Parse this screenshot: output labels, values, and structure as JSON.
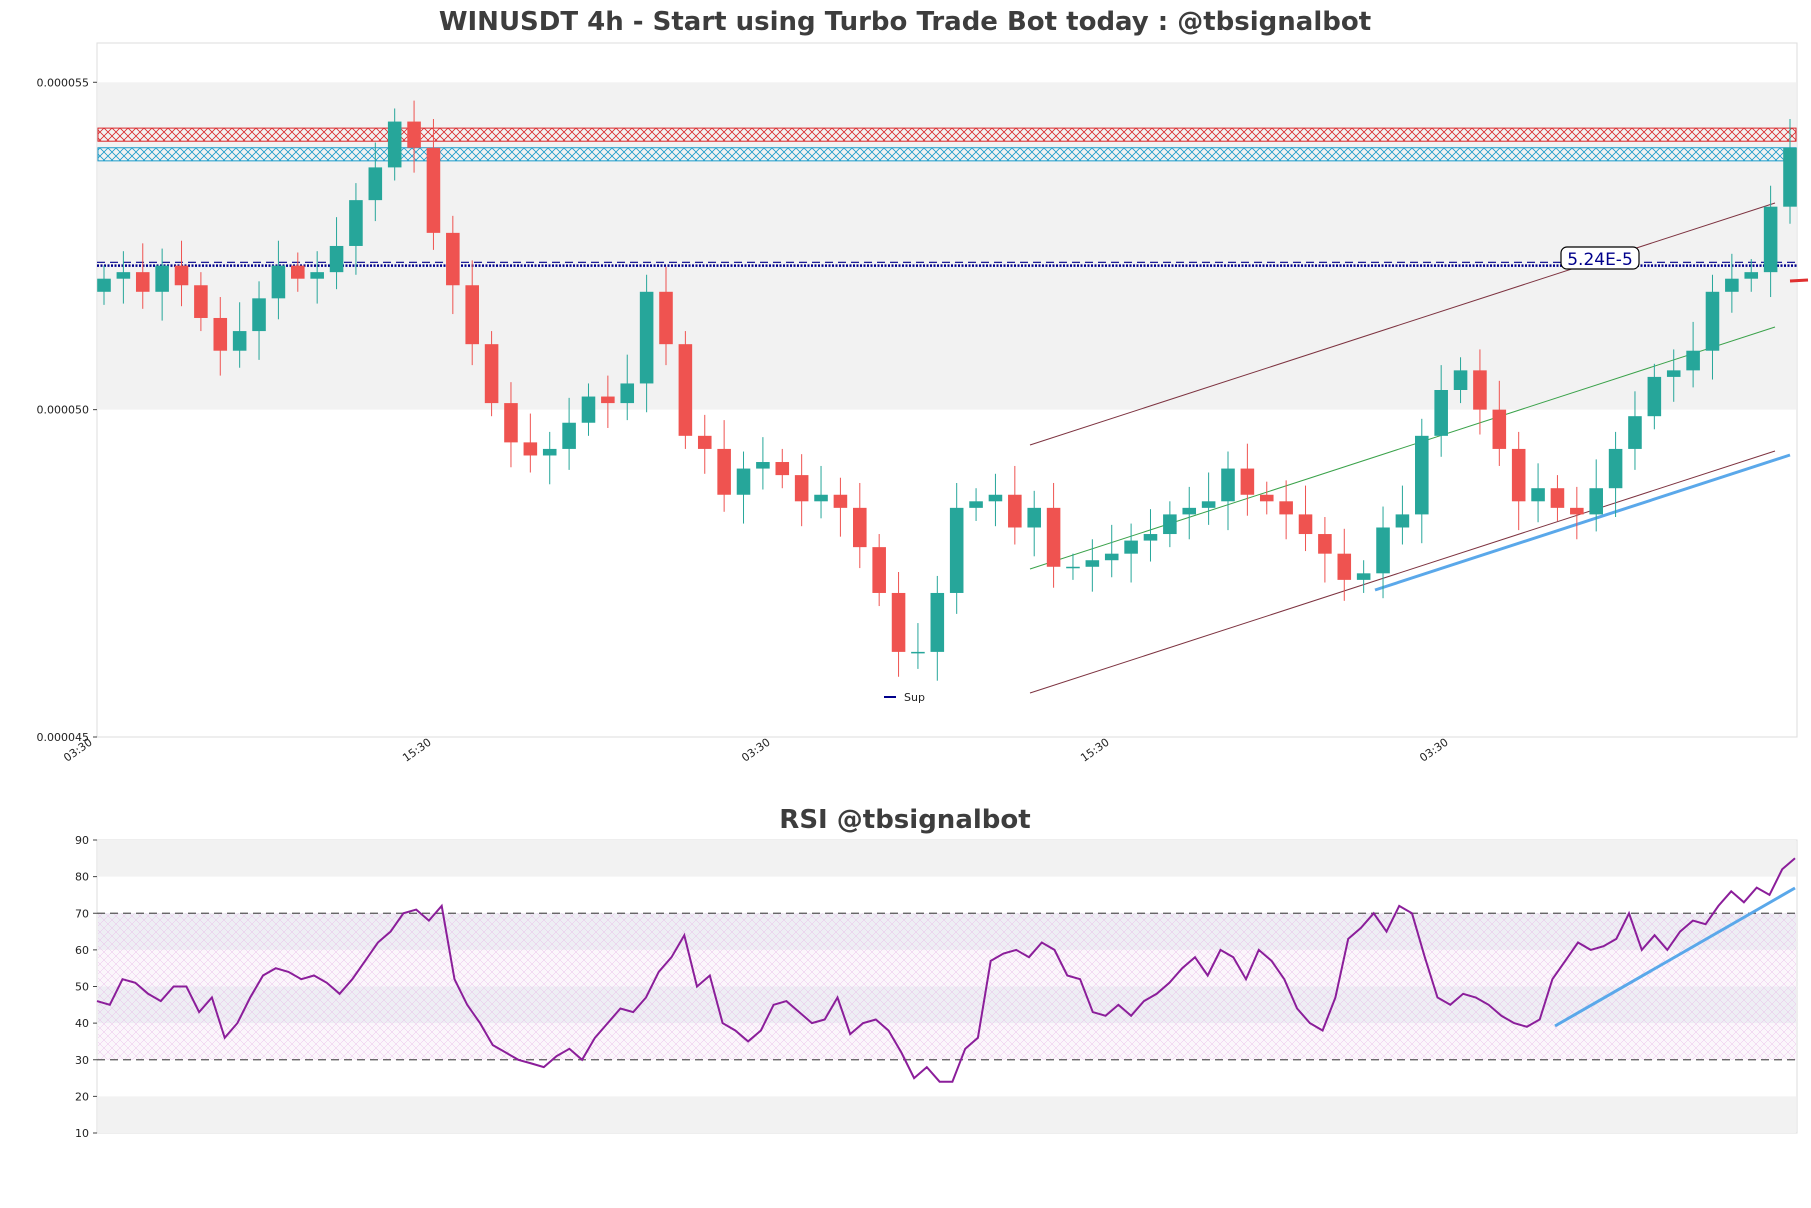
{
  "chart_data": [
    {
      "type": "candlestick",
      "title": "WINUSDT 4h - Start using Turbo Trade Bot today : @tbsignalbot",
      "y_ticks": [
        "0.000045",
        "0.000050",
        "0.000055"
      ],
      "ylim": [
        4.5e-05,
        5.56e-05
      ],
      "x_ticks": [
        "03:30",
        "15:30",
        "03:30",
        "15:30",
        "03:30"
      ],
      "grid": false,
      "legend": {
        "position": "lower-center",
        "entries": [
          "Sup"
        ]
      },
      "price_label": "5.24E-5",
      "levels": {
        "support_line": 5.22e-05,
        "support_dashed": 5.225e-05,
        "resistance_zone_red": [
          5.41e-05,
          5.43e-05
        ],
        "resistance_zone_blue": [
          5.38e-05,
          5.4e-05
        ],
        "shaded_band": [
          5e-05,
          5.5e-05
        ]
      },
      "colors": {
        "up": "#26a69a",
        "down": "#ef5350",
        "support": "#00008b",
        "trend": "#5aa8ea"
      },
      "series": [
        {
          "name": "price",
          "close": [
            5.2e-05,
            5.21e-05,
            5.18e-05,
            5.22e-05,
            5.19e-05,
            5.14e-05,
            5.09e-05,
            5.12e-05,
            5.17e-05,
            5.22e-05,
            5.2e-05,
            5.21e-05,
            5.25e-05,
            5.32e-05,
            5.37e-05,
            5.44e-05,
            5.4e-05,
            5.27e-05,
            5.19e-05,
            5.1e-05,
            5.01e-05,
            4.95e-05,
            4.93e-05,
            4.94e-05,
            4.98e-05,
            5.02e-05,
            5.01e-05,
            5.04e-05,
            5.18e-05,
            5.1e-05,
            4.96e-05,
            4.94e-05,
            4.87e-05,
            4.91e-05,
            4.92e-05,
            4.9e-05,
            4.86e-05,
            4.87e-05,
            4.85e-05,
            4.79e-05,
            4.72e-05,
            4.63e-05,
            4.63e-05,
            4.72e-05,
            4.85e-05,
            4.86e-05,
            4.87e-05,
            4.82e-05,
            4.85e-05,
            4.76e-05,
            4.76e-05,
            4.77e-05,
            4.78e-05,
            4.8e-05,
            4.81e-05,
            4.84e-05,
            4.85e-05,
            4.86e-05,
            4.91e-05,
            4.87e-05,
            4.86e-05,
            4.84e-05,
            4.81e-05,
            4.78e-05,
            4.74e-05,
            4.75e-05,
            4.82e-05,
            4.84e-05,
            4.96e-05,
            5.03e-05,
            5.06e-05,
            5e-05,
            4.94e-05,
            4.86e-05,
            4.88e-05,
            4.85e-05,
            4.84e-05,
            4.88e-05,
            4.94e-05,
            4.99e-05,
            5.05e-05,
            5.06e-05,
            5.09e-05,
            5.18e-05,
            5.2e-05,
            5.21e-05,
            5.31e-05,
            5.4e-05
          ]
        }
      ]
    },
    {
      "type": "line",
      "title": "RSI @tbsignalbot",
      "ylim": [
        10,
        90
      ],
      "y_ticks": [
        "10",
        "20",
        "30",
        "40",
        "50",
        "60",
        "70",
        "80",
        "90"
      ],
      "reference_lines": [
        30,
        70
      ],
      "colors": {
        "line": "#8b1e9a",
        "trend": "#5aa8ea"
      },
      "series": [
        {
          "name": "rsi",
          "values": [
            46,
            45,
            52,
            51,
            48,
            46,
            50,
            50,
            43,
            47,
            36,
            40,
            47,
            53,
            55,
            54,
            52,
            53,
            51,
            48,
            52,
            57,
            62,
            65,
            70,
            71,
            68,
            72,
            52,
            45,
            40,
            34,
            32,
            30,
            29,
            28,
            31,
            33,
            30,
            36,
            40,
            44,
            43,
            47,
            54,
            58,
            64,
            50,
            53,
            40,
            38,
            35,
            38,
            45,
            46,
            43,
            40,
            41,
            47,
            37,
            40,
            41,
            38,
            32,
            25,
            28,
            24,
            24,
            33,
            36,
            57,
            59,
            60,
            58,
            62,
            60,
            53,
            52,
            43,
            42,
            45,
            42,
            46,
            48,
            51,
            55,
            58,
            53,
            60,
            58,
            52,
            60,
            57,
            52,
            44,
            40,
            38,
            47,
            63,
            66,
            70,
            65,
            72,
            70,
            58,
            47,
            45,
            48,
            47,
            45,
            42,
            40,
            39,
            41,
            52,
            57,
            62,
            60,
            61,
            63,
            70,
            60,
            64,
            60,
            65,
            68,
            67,
            72,
            76,
            73,
            77,
            75,
            82,
            85
          ]
        }
      ]
    }
  ]
}
